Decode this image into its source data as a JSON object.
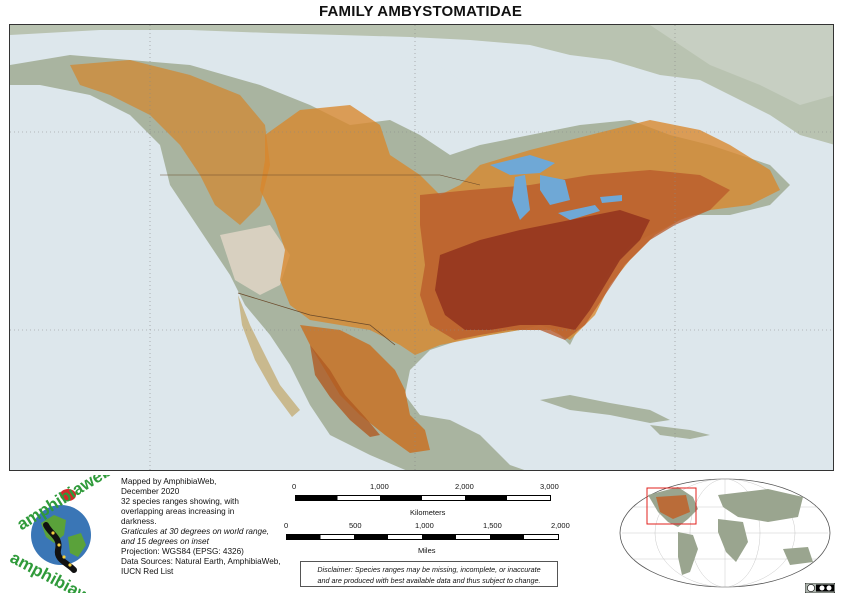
{
  "title": "FAMILY AMBYSTOMATIDAE",
  "logo": {
    "text_top": "amphibiaweb",
    "text_bottom": "amphibiaweb"
  },
  "info": {
    "mapped_by": "Mapped by AmphibiaWeb,",
    "date": "December 2020",
    "species_line1": "32 species ranges showing, with",
    "species_line2": "overlapping areas increasing in",
    "species_line3": "darkness.",
    "graticules_line1": "Graticules at 30 degrees on world range,",
    "graticules_line2": "and 15 degrees on inset",
    "projection": "Projection: WGS84 (EPSG: 4326)",
    "sources_line1": "Data Sources: Natural Earth, AmphibiaWeb,",
    "sources_line2": "IUCN Red List"
  },
  "scale_km": {
    "ticks": [
      "0",
      "1,000",
      "2,000",
      "3,000"
    ],
    "unit": "Kilometers"
  },
  "scale_mi": {
    "ticks": [
      "0",
      "500",
      "1,000",
      "1,500",
      "2,000"
    ],
    "unit": "Miles"
  },
  "disclaimer": {
    "line1": "Disclaimer: Species ranges may be missing, incomplete, or inaccurate",
    "line2": "and are produced with best available data and thus subject to change."
  },
  "colors": {
    "water": "#d9e4ea",
    "land": "#aeb9a6",
    "range_light": "#d78a2a",
    "range_mid": "#c0622a",
    "range_dark": "#8e2e1c",
    "inset_box": "#e0201c",
    "lakes": "#6fa8d6"
  },
  "legend_license": "cc-by-icon"
}
